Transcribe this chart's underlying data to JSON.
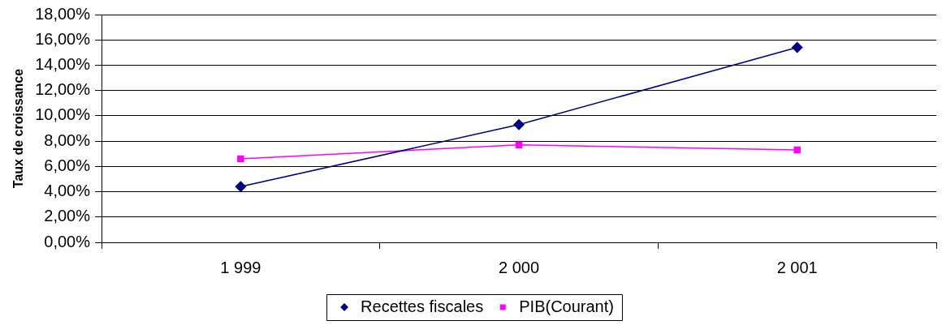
{
  "chart_data": {
    "type": "line",
    "ylabel": "Taux de croissance",
    "categories": [
      "1 999",
      "2 000",
      "2 001"
    ],
    "series": [
      {
        "name": "Recettes fiscales",
        "color": "#000080",
        "marker": "diamond",
        "values": [
          4.4,
          9.3,
          15.4
        ]
      },
      {
        "name": "PIB(Courant)",
        "color": "#ff00ff",
        "marker": "square",
        "values": [
          6.6,
          7.7,
          7.3
        ]
      }
    ],
    "ylim": [
      0,
      18
    ],
    "yticks": [
      {
        "value": 0,
        "label": "0,00%"
      },
      {
        "value": 2,
        "label": "2,00%"
      },
      {
        "value": 4,
        "label": "4,00%"
      },
      {
        "value": 6,
        "label": "6,00%"
      },
      {
        "value": 8,
        "label": "8,00%"
      },
      {
        "value": 10,
        "label": "10,00%"
      },
      {
        "value": 12,
        "label": "12,00%"
      },
      {
        "value": 14,
        "label": "14,00%"
      },
      {
        "value": 16,
        "label": "16,00%"
      },
      {
        "value": 18,
        "label": "18,00%"
      }
    ],
    "grid": "y",
    "legend": "bottom",
    "line_style": "solid"
  }
}
